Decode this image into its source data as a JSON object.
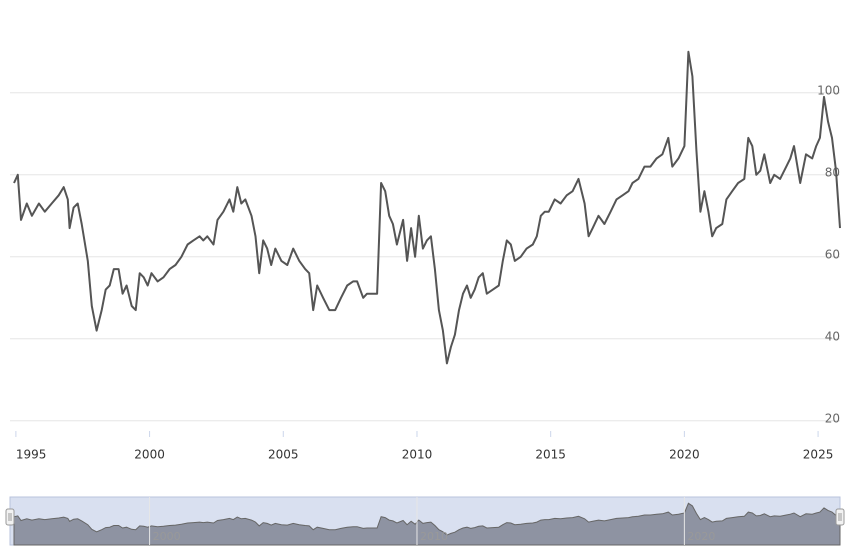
{
  "chart_data": {
    "type": "line",
    "color": "#555555",
    "grid": true,
    "x": [
      1994.93,
      1995.07,
      1995.19,
      1995.41,
      1995.6,
      1995.86,
      1996.08,
      1996.34,
      1996.6,
      1996.79,
      1996.94,
      1997.01,
      1997.16,
      1997.31,
      1997.46,
      1997.69,
      1997.84,
      1998.02,
      1998.21,
      1998.36,
      1998.51,
      1998.66,
      1998.84,
      1998.99,
      1999.14,
      1999.33,
      1999.48,
      1999.63,
      1999.78,
      1999.93,
      2000.07,
      2000.3,
      2000.52,
      2000.75,
      2000.97,
      2001.19,
      2001.42,
      2001.64,
      2001.87,
      2002.01,
      2002.16,
      2002.39,
      2002.54,
      2002.76,
      2002.99,
      2003.13,
      2003.28,
      2003.43,
      2003.58,
      2003.81,
      2003.96,
      2004.1,
      2004.25,
      2004.4,
      2004.55,
      2004.7,
      2004.93,
      2005.15,
      2005.37,
      2005.6,
      2005.82,
      2005.97,
      2006.12,
      2006.27,
      2006.49,
      2006.72,
      2006.94,
      2007.16,
      2007.39,
      2007.61,
      2007.76,
      2007.99,
      2008.13,
      2008.36,
      2008.51,
      2008.66,
      2008.81,
      2008.96,
      2009.1,
      2009.25,
      2009.48,
      2009.63,
      2009.78,
      2009.93,
      2010.07,
      2010.22,
      2010.37,
      2010.52,
      2010.67,
      2010.82,
      2010.97,
      2011.12,
      2011.27,
      2011.42,
      2011.57,
      2011.72,
      2011.87,
      2012.01,
      2012.16,
      2012.31,
      2012.46,
      2012.61,
      2012.84,
      2013.06,
      2013.21,
      2013.36,
      2013.51,
      2013.66,
      2013.88,
      2014.1,
      2014.33,
      2014.48,
      2014.63,
      2014.78,
      2014.93,
      2015.15,
      2015.37,
      2015.6,
      2015.82,
      2016.04,
      2016.27,
      2016.42,
      2016.57,
      2016.79,
      2017.01,
      2017.24,
      2017.46,
      2017.69,
      2017.91,
      2018.06,
      2018.28,
      2018.51,
      2018.73,
      2018.96,
      2019.18,
      2019.4,
      2019.55,
      2019.78,
      2020.0,
      2020.15,
      2020.3,
      2020.45,
      2020.6,
      2020.75,
      2020.9,
      2021.04,
      2021.19,
      2021.42,
      2021.57,
      2021.79,
      2022.01,
      2022.24,
      2022.39,
      2022.54,
      2022.69,
      2022.84,
      2022.99,
      2023.21,
      2023.36,
      2023.58,
      2023.81,
      2023.96,
      2024.1,
      2024.33,
      2024.55,
      2024.78,
      2024.93,
      2025.07,
      2025.22,
      2025.37,
      2025.52,
      2025.67,
      2025.82
    ],
    "values": [
      78,
      80,
      69,
      73,
      70,
      73,
      71,
      73,
      75,
      77,
      74,
      67,
      72,
      73,
      68,
      59,
      48,
      42,
      47,
      52,
      53,
      57,
      57,
      51,
      53,
      48,
      47,
      56,
      55,
      53,
      56,
      54,
      55,
      57,
      58,
      60,
      63,
      64,
      65,
      64,
      65,
      63,
      69,
      71,
      74,
      71,
      77,
      73,
      74,
      70,
      65,
      56,
      64,
      62,
      58,
      62,
      59,
      58,
      62,
      59,
      57,
      56,
      47,
      53,
      50,
      47,
      47,
      50,
      53,
      54,
      54,
      50,
      51,
      51,
      51,
      78,
      76,
      70,
      68,
      63,
      69,
      59,
      67,
      60,
      70,
      62,
      64,
      65,
      57,
      47,
      42,
      34,
      38,
      41,
      47,
      51,
      53,
      50,
      52,
      55,
      56,
      51,
      52,
      53,
      59,
      64,
      63,
      59,
      60,
      62,
      63,
      65,
      70,
      71,
      71,
      74,
      73,
      75,
      76,
      79,
      73,
      65,
      67,
      70,
      68,
      71,
      74,
      75,
      76,
      78,
      79,
      82,
      82,
      84,
      85,
      89,
      82,
      84,
      87,
      110,
      104,
      86,
      71,
      76,
      71,
      65,
      67,
      68,
      74,
      76,
      78,
      79,
      89,
      87,
      80,
      81,
      85,
      78,
      80,
      79,
      82,
      84,
      87,
      78,
      85,
      84,
      87,
      89,
      99,
      93,
      89,
      81,
      67
    ],
    "xlim": [
      1994.78,
      2025.82
    ],
    "xticks": [
      1995,
      2000,
      2005,
      2010,
      2015,
      2020,
      2025
    ],
    "ylim": [
      17.5,
      118
    ],
    "yticks": [
      20,
      40,
      60,
      80,
      100
    ],
    "navigator_xticks": [
      2000,
      2010,
      2020
    ]
  }
}
